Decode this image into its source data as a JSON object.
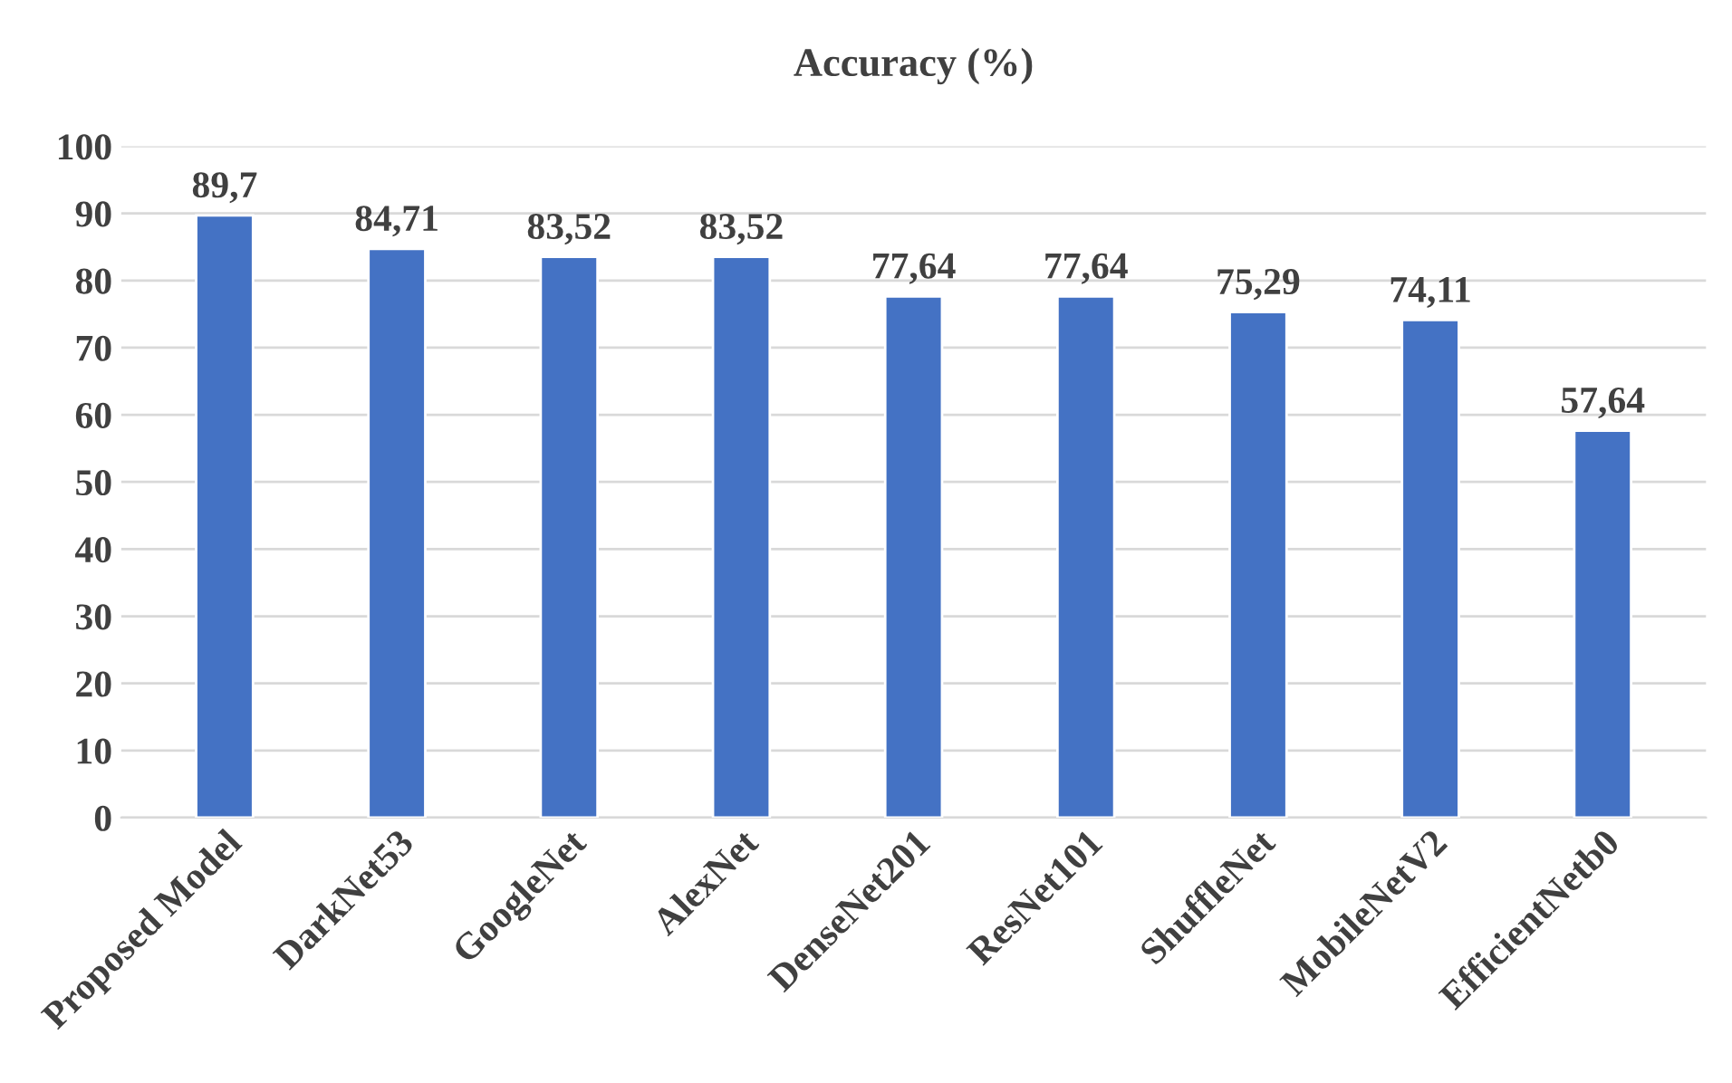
{
  "chart_data": {
    "type": "bar",
    "title": "Accuracy (%)",
    "categories": [
      "Proposed Model",
      "DarkNet53",
      "GoogleNet",
      "AlexNet",
      "DenseNet201",
      "ResNet101",
      "ShuffleNet",
      "MobileNetV2",
      "EfficientNetb0"
    ],
    "values": [
      89.7,
      84.71,
      83.52,
      83.52,
      77.64,
      77.64,
      75.29,
      74.11,
      57.64
    ],
    "value_labels": [
      "89,7",
      "84,71",
      "83,52",
      "83,52",
      "77,64",
      "77,64",
      "75,29",
      "74,11",
      "57,64"
    ],
    "color": "#4472c4",
    "ylim": [
      0,
      100
    ],
    "yticks": [
      0,
      10,
      20,
      30,
      40,
      50,
      60,
      70,
      80,
      90,
      100
    ],
    "grid": "y"
  }
}
